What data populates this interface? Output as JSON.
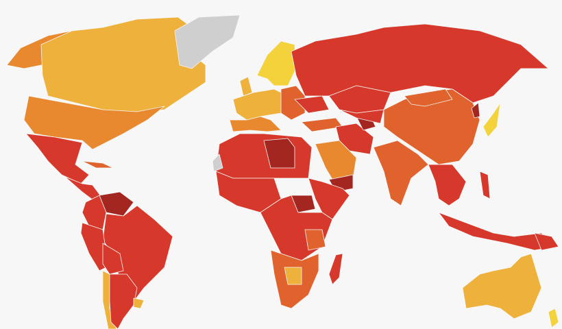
{
  "map": {
    "background": "#f7f7f7",
    "colors": {
      "no_data": "#cfcfcf",
      "level_1": "#f4d23c",
      "level_2": "#eeb13c",
      "level_3": "#e8892f",
      "level_4": "#e0622c",
      "level_5": "#d6392b",
      "level_6": "#a32620"
    }
  }
}
